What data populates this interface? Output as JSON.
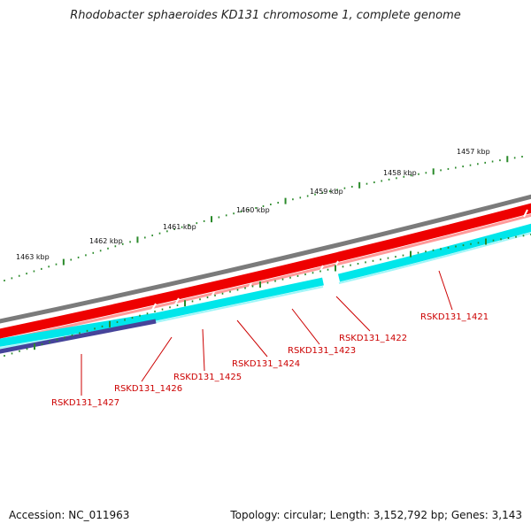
{
  "title": "Rhodobacter sphaeroides KD131 chromosome 1, complete genome",
  "footer": {
    "accession": "Accession: NC_011963",
    "topology": "Topology: circular; Length: 3,152,792 bp; Genes: 3,143"
  },
  "colors": {
    "backbone": "#7f7f7f",
    "cds_red": "#ee0000",
    "cds_cyan": "#00e6ea",
    "cds_navy": "#46449a",
    "tick_green": "#2a8a2a",
    "gene_label": "#cc0000",
    "scale_label": "#111111"
  },
  "scale": {
    "unit": "kbp",
    "labels": [
      "1463 kbp",
      "1462 kbp",
      "1461 kbp",
      "1460 kbp",
      "1459 kbp",
      "1458 kbp",
      "1457 kbp"
    ]
  },
  "genes": [
    {
      "id": "RSKD131_1427",
      "label": "RSKD131_1427"
    },
    {
      "id": "RSKD131_1426",
      "label": "RSKD131_1426"
    },
    {
      "id": "RSKD131_1425",
      "label": "RSKD131_1425"
    },
    {
      "id": "RSKD131_1424",
      "label": "RSKD131_1424"
    },
    {
      "id": "RSKD131_1423",
      "label": "RSKD131_1423"
    },
    {
      "id": "RSKD131_1422",
      "label": "RSKD131_1422"
    },
    {
      "id": "RSKD131_1421",
      "label": "RSKD131_1421"
    }
  ]
}
